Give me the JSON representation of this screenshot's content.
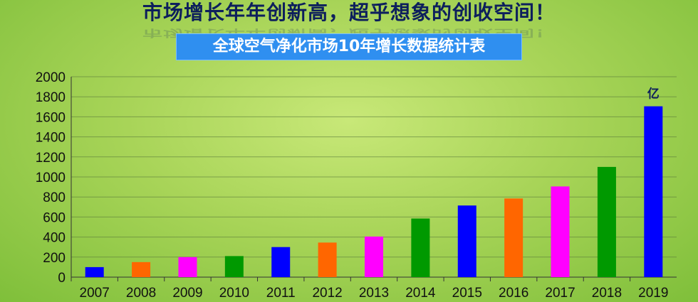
{
  "header": {
    "title": "市场增长年年创新高，超乎想象的创收空间！",
    "subtitle": "全球空气净化市场10年增长数据统计表"
  },
  "chart_data": {
    "type": "bar",
    "title": "全球空气净化市场10年增长数据统计表",
    "unit_label": "亿",
    "categories": [
      "2007",
      "2008",
      "2009",
      "2010",
      "2011",
      "2012",
      "2013",
      "2014",
      "2015",
      "2016",
      "2017",
      "2018",
      "2019"
    ],
    "values": [
      100,
      150,
      200,
      210,
      300,
      345,
      405,
      585,
      715,
      785,
      905,
      1100,
      1705
    ],
    "bar_colors": [
      "#0000ff",
      "#ff6600",
      "#ff00ff",
      "#009900",
      "#0000ff",
      "#ff6600",
      "#ff00ff",
      "#009900",
      "#0000ff",
      "#ff6600",
      "#ff00ff",
      "#009900",
      "#0000ff"
    ],
    "yticks": [
      0,
      200,
      400,
      600,
      800,
      1000,
      1200,
      1400,
      1600,
      1800,
      2000
    ],
    "ylim": [
      0,
      2000
    ],
    "grid": true,
    "legend": "none"
  }
}
